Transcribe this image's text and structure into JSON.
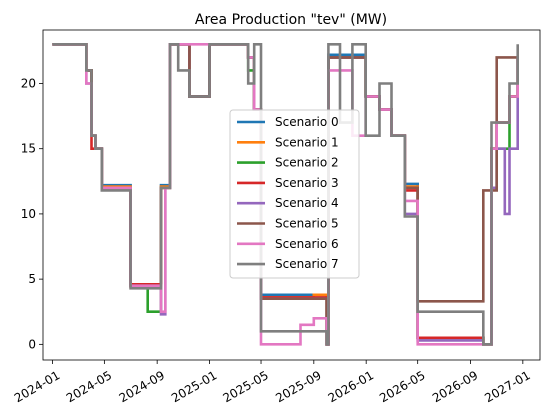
{
  "chart_data": {
    "type": "line",
    "title": "Area Production \"tev\" (MW)",
    "xlabel": "",
    "ylabel": "",
    "ylim": [
      -1.2,
      24.1
    ],
    "xlim": [
      "2023-12-10",
      "2027-02-10"
    ],
    "yticks": [
      0,
      5,
      10,
      15,
      20
    ],
    "xticks": [
      "2024-01",
      "2024-05",
      "2024-09",
      "2025-01",
      "2025-05",
      "2025-09",
      "2026-01",
      "2026-05",
      "2026-09",
      "2027-01"
    ],
    "legend": {
      "position": "center"
    },
    "grid": false,
    "series": [
      {
        "name": "Scenario 0",
        "color": "#1f77b4",
        "x": [
          "2024-01-01",
          "2024-03-10",
          "2024-03-20",
          "2024-04-01",
          "2024-04-10",
          "2024-04-25",
          "2024-05-01",
          "2024-06-01",
          "2024-07-01",
          "2024-08-10",
          "2024-09-10",
          "2024-09-20",
          "2024-10-01",
          "2024-10-20",
          "2024-11-15",
          "2025-01-01",
          "2025-02-20",
          "2025-04-01",
          "2025-04-15",
          "2025-05-01",
          "2025-06-01",
          "2025-07-01",
          "2025-08-01",
          "2025-09-01",
          "2025-10-01",
          "2025-10-05",
          "2025-10-15",
          "2025-11-01",
          "2025-11-30",
          "2025-12-31",
          "2026-02-01",
          "2026-03-01",
          "2026-04-01",
          "2026-04-15",
          "2026-05-01",
          "2026-06-01",
          "2026-07-01",
          "2026-08-01",
          "2026-09-01",
          "2026-10-01",
          "2026-10-20",
          "2026-11-01",
          "2026-11-20",
          "2026-12-01",
          "2026-12-20"
        ],
        "y": [
          23,
          23,
          21,
          16,
          15,
          12.2,
          12.2,
          12.2,
          4.6,
          4.6,
          12.2,
          12.2,
          23,
          23,
          19,
          23,
          23,
          22,
          18,
          3.8,
          3.8,
          3.8,
          3.8,
          3.8,
          0,
          22.2,
          22.2,
          22.2,
          22.2,
          19,
          18,
          16,
          12.3,
          12.3,
          0.5,
          0.5,
          0.5,
          0.5,
          0.5,
          0,
          15,
          17,
          17,
          19,
          22
        ]
      },
      {
        "name": "Scenario 1",
        "color": "#ff7f0e",
        "x": [
          "2024-01-01",
          "2024-03-10",
          "2024-03-20",
          "2024-04-01",
          "2024-04-10",
          "2024-04-25",
          "2024-05-01",
          "2024-06-01",
          "2024-07-01",
          "2024-08-10",
          "2024-09-10",
          "2024-09-20",
          "2024-10-01",
          "2024-10-20",
          "2024-11-15",
          "2025-01-01",
          "2025-02-20",
          "2025-04-01",
          "2025-04-15",
          "2025-05-01",
          "2025-06-01",
          "2025-07-01",
          "2025-08-01",
          "2025-09-01",
          "2025-10-01",
          "2025-10-05",
          "2025-10-15",
          "2025-11-01",
          "2025-11-30",
          "2025-12-31",
          "2026-02-01",
          "2026-03-01",
          "2026-04-01",
          "2026-04-15",
          "2026-05-01",
          "2026-06-01",
          "2026-07-01",
          "2026-08-01",
          "2026-09-01",
          "2026-10-01",
          "2026-10-20",
          "2026-11-01",
          "2026-11-20",
          "2026-12-01",
          "2026-12-20"
        ],
        "y": [
          23,
          23,
          21,
          16,
          15,
          12.1,
          12.1,
          12.1,
          4.4,
          4.4,
          12.1,
          12.1,
          23,
          23,
          19,
          23,
          23,
          22,
          18,
          3.6,
          3.6,
          3.6,
          3.6,
          3.8,
          0,
          22,
          22,
          22,
          22,
          19,
          18,
          16,
          12.1,
          12.1,
          0.5,
          0.5,
          0.5,
          0.5,
          0.5,
          0,
          15,
          17,
          17,
          19,
          22
        ]
      },
      {
        "name": "Scenario 2",
        "color": "#2ca02c",
        "x": [
          "2024-01-01",
          "2024-03-10",
          "2024-03-20",
          "2024-04-01",
          "2024-04-10",
          "2024-04-25",
          "2024-05-01",
          "2024-06-01",
          "2024-07-01",
          "2024-08-10",
          "2024-09-10",
          "2024-09-20",
          "2024-10-01",
          "2024-10-20",
          "2024-11-15",
          "2025-01-01",
          "2025-02-20",
          "2025-04-01",
          "2025-04-15",
          "2025-05-01",
          "2025-06-01",
          "2025-07-01",
          "2025-08-01",
          "2025-09-01",
          "2025-10-01",
          "2025-10-05",
          "2025-10-15",
          "2025-11-01",
          "2025-11-30",
          "2025-12-31",
          "2026-02-01",
          "2026-03-01",
          "2026-04-01",
          "2026-04-15",
          "2026-05-01",
          "2026-06-01",
          "2026-07-01",
          "2026-08-01",
          "2026-09-01",
          "2026-10-01",
          "2026-10-20",
          "2026-11-01",
          "2026-11-20",
          "2026-12-01",
          "2026-12-20"
        ],
        "y": [
          23,
          23,
          21,
          16,
          15,
          12,
          12,
          12,
          4.5,
          2.5,
          12,
          12,
          23,
          23,
          19,
          23,
          23,
          21,
          18,
          3.5,
          3.5,
          3.5,
          3.5,
          3.5,
          0,
          22,
          22,
          22,
          22,
          19,
          18,
          16,
          12,
          12,
          0.5,
          0.5,
          0.5,
          0.5,
          0.5,
          0,
          15,
          15,
          15,
          19,
          22
        ]
      },
      {
        "name": "Scenario 3",
        "color": "#d62728",
        "x": [
          "2024-01-01",
          "2024-03-10",
          "2024-03-20",
          "2024-04-01",
          "2024-04-10",
          "2024-04-25",
          "2024-05-01",
          "2024-06-01",
          "2024-07-01",
          "2024-08-10",
          "2024-09-10",
          "2024-09-20",
          "2024-10-01",
          "2024-10-20",
          "2024-11-15",
          "2025-01-01",
          "2025-02-20",
          "2025-04-01",
          "2025-04-15",
          "2025-05-01",
          "2025-06-01",
          "2025-07-01",
          "2025-08-01",
          "2025-09-01",
          "2025-10-01",
          "2025-10-05",
          "2025-10-15",
          "2025-11-01",
          "2025-11-30",
          "2025-12-31",
          "2026-02-01",
          "2026-03-01",
          "2026-04-01",
          "2026-04-15",
          "2026-05-01",
          "2026-06-01",
          "2026-07-01",
          "2026-08-01",
          "2026-09-01",
          "2026-10-01",
          "2026-10-20",
          "2026-11-01",
          "2026-11-20",
          "2026-12-01",
          "2026-12-20"
        ],
        "y": [
          23,
          23,
          21,
          15,
          15,
          12,
          12,
          12,
          4.6,
          4.6,
          12,
          12,
          23,
          23,
          19,
          23,
          23,
          22,
          18,
          3.6,
          3.6,
          3.6,
          3.6,
          3.6,
          0,
          22,
          22,
          22,
          22,
          19,
          18,
          16,
          11.8,
          11.8,
          0.5,
          0.5,
          0.5,
          0.5,
          0.5,
          0,
          15,
          17,
          17,
          19,
          22
        ]
      },
      {
        "name": "Scenario 4",
        "color": "#9467bd",
        "x": [
          "2024-01-01",
          "2024-03-10",
          "2024-03-20",
          "2024-04-01",
          "2024-04-10",
          "2024-04-25",
          "2024-05-01",
          "2024-06-01",
          "2024-07-01",
          "2024-08-10",
          "2024-09-10",
          "2024-09-20",
          "2024-10-01",
          "2024-10-20",
          "2024-11-15",
          "2025-01-01",
          "2025-02-20",
          "2025-04-01",
          "2025-04-15",
          "2025-05-01",
          "2025-06-01",
          "2025-07-01",
          "2025-08-01",
          "2025-09-01",
          "2025-10-01",
          "2025-10-05",
          "2025-10-15",
          "2025-11-01",
          "2025-11-30",
          "2025-12-31",
          "2026-02-01",
          "2026-03-01",
          "2026-04-01",
          "2026-04-15",
          "2026-05-01",
          "2026-06-01",
          "2026-07-01",
          "2026-08-01",
          "2026-09-01",
          "2026-10-01",
          "2026-10-20",
          "2026-11-01",
          "2026-11-20",
          "2026-12-01",
          "2026-12-20"
        ],
        "y": [
          23,
          23,
          20,
          16,
          15,
          12,
          12,
          12,
          4.4,
          4.4,
          2.3,
          12,
          23,
          23,
          19,
          23,
          23,
          22,
          18,
          3.5,
          3.5,
          3.5,
          3.5,
          3.5,
          0,
          22,
          22,
          22,
          22,
          19,
          18,
          16,
          10,
          10,
          0.3,
          0.3,
          0.3,
          0.3,
          0.3,
          0,
          12,
          15,
          10,
          15,
          22
        ]
      },
      {
        "name": "Scenario 5",
        "color": "#8c564b",
        "x": [
          "2024-01-01",
          "2024-03-10",
          "2024-03-20",
          "2024-04-01",
          "2024-04-10",
          "2024-04-25",
          "2024-05-01",
          "2024-06-01",
          "2024-07-01",
          "2024-08-10",
          "2024-09-10",
          "2024-09-20",
          "2024-10-01",
          "2024-10-20",
          "2024-11-15",
          "2025-01-01",
          "2025-02-20",
          "2025-04-01",
          "2025-04-15",
          "2025-05-01",
          "2025-06-01",
          "2025-07-01",
          "2025-08-01",
          "2025-09-01",
          "2025-10-01",
          "2025-10-05",
          "2025-10-15",
          "2025-11-01",
          "2025-11-30",
          "2025-12-31",
          "2026-02-01",
          "2026-03-01",
          "2026-04-01",
          "2026-04-15",
          "2026-05-01",
          "2026-06-01",
          "2026-07-01",
          "2026-08-01",
          "2026-09-01",
          "2026-10-01",
          "2026-10-20",
          "2026-11-01",
          "2026-11-20",
          "2026-12-01",
          "2026-12-20"
        ],
        "y": [
          23,
          23,
          21,
          16,
          15,
          12,
          12,
          12,
          4.5,
          4.5,
          12,
          12,
          23,
          23,
          19,
          23,
          23,
          22,
          18,
          3.5,
          3.5,
          3.5,
          3.5,
          3.5,
          0,
          22,
          22,
          22,
          22,
          19,
          18,
          16,
          12,
          12,
          3.3,
          3.3,
          3.3,
          3.3,
          3.3,
          11.8,
          11.8,
          22,
          22,
          22,
          22
        ]
      },
      {
        "name": "Scenario 6",
        "color": "#e377c2",
        "x": [
          "2024-01-01",
          "2024-03-10",
          "2024-03-20",
          "2024-04-01",
          "2024-04-10",
          "2024-04-25",
          "2024-05-01",
          "2024-06-01",
          "2024-07-01",
          "2024-08-10",
          "2024-09-10",
          "2024-09-20",
          "2024-10-01",
          "2024-10-20",
          "2024-11-15",
          "2025-01-01",
          "2025-02-20",
          "2025-04-01",
          "2025-04-15",
          "2025-05-01",
          "2025-06-01",
          "2025-07-01",
          "2025-08-01",
          "2025-09-01",
          "2025-10-01",
          "2025-10-05",
          "2025-10-15",
          "2025-11-01",
          "2025-11-30",
          "2025-12-31",
          "2026-02-01",
          "2026-03-01",
          "2026-04-01",
          "2026-04-15",
          "2026-05-01",
          "2026-06-01",
          "2026-07-01",
          "2026-08-01",
          "2026-09-01",
          "2026-10-01",
          "2026-10-20",
          "2026-11-01",
          "2026-11-20",
          "2026-12-01",
          "2026-12-20"
        ],
        "y": [
          23,
          23,
          20,
          16,
          15,
          12,
          12,
          12,
          4.5,
          4.5,
          2.5,
          12,
          23,
          23,
          23,
          23,
          23,
          22,
          18,
          0,
          0,
          0,
          1.5,
          2,
          0,
          21,
          21,
          21,
          16,
          19,
          18,
          16,
          11,
          11,
          0,
          0,
          0,
          0,
          0,
          0,
          15,
          17,
          17,
          19,
          22
        ]
      },
      {
        "name": "Scenario 7",
        "color": "#7f7f7f",
        "x": [
          "2024-01-01",
          "2024-03-10",
          "2024-03-20",
          "2024-04-01",
          "2024-04-10",
          "2024-04-25",
          "2024-05-01",
          "2024-06-01",
          "2024-07-01",
          "2024-08-10",
          "2024-09-10",
          "2024-09-20",
          "2024-10-01",
          "2024-10-20",
          "2024-11-15",
          "2025-01-01",
          "2025-02-20",
          "2025-04-01",
          "2025-04-15",
          "2025-05-01",
          "2025-06-01",
          "2025-07-01",
          "2025-08-01",
          "2025-09-01",
          "2025-10-01",
          "2025-10-05",
          "2025-10-15",
          "2025-11-01",
          "2025-11-30",
          "2025-12-31",
          "2026-02-01",
          "2026-03-01",
          "2026-04-01",
          "2026-04-15",
          "2026-05-01",
          "2026-06-01",
          "2026-07-01",
          "2026-08-01",
          "2026-09-01",
          "2026-10-01",
          "2026-10-20",
          "2026-11-01",
          "2026-11-20",
          "2026-12-01",
          "2026-12-20"
        ],
        "y": [
          23,
          23,
          21,
          16,
          15,
          11.8,
          11.8,
          11.8,
          4.3,
          4.3,
          12,
          12,
          23,
          21,
          19,
          23,
          23,
          20,
          23,
          1,
          1,
          1,
          1,
          1,
          0,
          23,
          23,
          17,
          23,
          16,
          20,
          16,
          9.8,
          9.8,
          2.5,
          2.5,
          2.5,
          2.5,
          2.5,
          0,
          17,
          17,
          17,
          20,
          23
        ]
      }
    ]
  }
}
